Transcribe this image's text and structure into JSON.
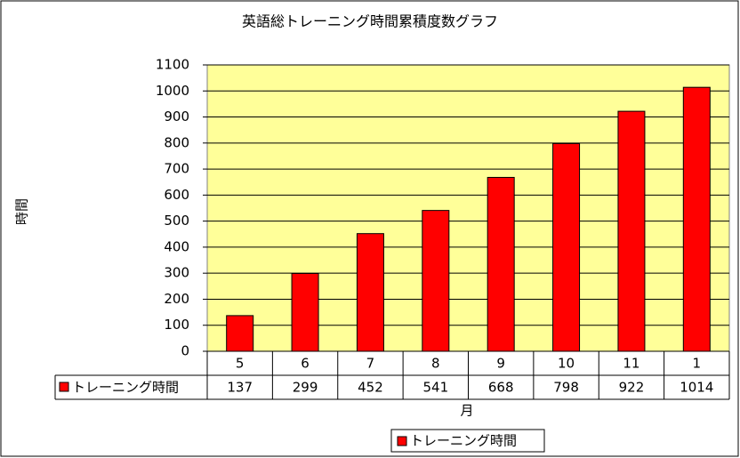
{
  "chart_data": {
    "type": "bar",
    "title": "英語総トレーニング時間累積度数グラフ",
    "x_label": "月",
    "y_label": "時間",
    "categories": [
      "5",
      "6",
      "7",
      "8",
      "9",
      "10",
      "11",
      "1"
    ],
    "series": [
      {
        "name": "トレーニング時間",
        "color": "#ff0000",
        "values": [
          137,
          299,
          452,
          541,
          668,
          798,
          922,
          1014
        ]
      }
    ],
    "ylim": [
      0,
      1100
    ],
    "yticks": [
      0,
      100,
      200,
      300,
      400,
      500,
      600,
      700,
      800,
      900,
      1000,
      1100
    ],
    "grid": true,
    "legend": "bottom",
    "data_table": true
  }
}
